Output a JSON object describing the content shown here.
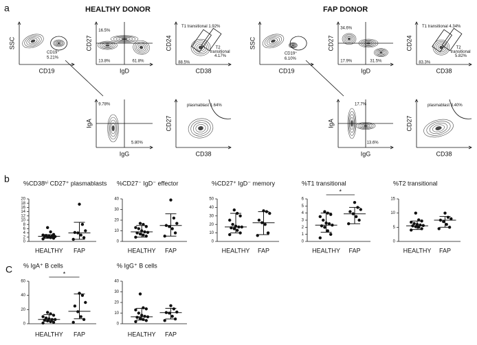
{
  "panel_labels": [
    "a",
    "b",
    "C"
  ],
  "donors": [
    "HEALTHY DONOR",
    "FAP DONOR"
  ],
  "flow_plots": [
    {
      "x_label": "CD19",
      "y_label": "SSC",
      "labels": [
        "CD19⁺",
        "5.21%"
      ]
    },
    {
      "x_label": "IgD",
      "y_label": "CD27",
      "labels": [
        "16.5%",
        "13.8%",
        "61.8%"
      ]
    },
    {
      "x_label": "CD38",
      "y_label": "CD24",
      "labels": [
        "T1 transitional 1.92%",
        "88.5%",
        "T2",
        "transitional",
        "4.17%"
      ]
    },
    {
      "x_label": "IgG",
      "y_label": "IgA",
      "labels": [
        "9.78%",
        "5.80%"
      ]
    },
    {
      "x_label": "CD38",
      "y_label": "CD27",
      "labels": [
        "plasmablast 1.64%"
      ]
    },
    {
      "x_label": "CD19",
      "y_label": "SSC",
      "labels": [
        "CD19⁺",
        "6.10%"
      ]
    },
    {
      "x_label": "IgD",
      "y_label": "CD27",
      "labels": [
        "34.6%",
        "17.9%",
        "31.5%"
      ]
    },
    {
      "x_label": "CD38",
      "y_label": "CD24",
      "labels": [
        "T1 transitional 4.34%",
        "83.3%",
        "T2",
        "transitional",
        "5.82%"
      ]
    },
    {
      "x_label": "IgG",
      "y_label": "IgA",
      "labels": [
        "17.7%",
        "13.6%"
      ]
    },
    {
      "x_label": "CD38",
      "y_label": "CD27",
      "labels": [
        "plasmablast 3.40%"
      ]
    }
  ],
  "chart_data": [
    {
      "type": "dotplot",
      "title": "%CD38ʰⁱ CD27⁺ plasmablasts",
      "categories": [
        "HEALTHY",
        "FAP"
      ],
      "color": "#111111",
      "ylim": [
        0,
        20
      ],
      "yticks": [
        0,
        2,
        4,
        6,
        8,
        10,
        12,
        14,
        16,
        18,
        20
      ],
      "groups": [
        {
          "points": [
            1.2,
            1.5,
            1.8,
            2,
            2.2,
            2.3,
            2.5,
            2.6,
            2.8,
            3,
            3.3,
            4.5,
            6.5
          ],
          "median": 2.4,
          "low": 1.5,
          "high": 3.2
        },
        {
          "points": [
            1,
            1.8,
            3,
            4,
            4.2,
            5,
            8,
            17.5
          ],
          "median": 4,
          "low": 1,
          "high": 9
        }
      ]
    },
    {
      "type": "dotplot",
      "title": "%CD27⁻ IgD⁻ effector",
      "categories": [
        "HEALTHY",
        "FAP"
      ],
      "color": "#111111",
      "ylim": [
        0,
        40
      ],
      "yticks": [
        0,
        10,
        20,
        30,
        40
      ],
      "groups": [
        {
          "points": [
            4,
            5,
            6,
            7,
            8,
            8.5,
            9,
            10,
            12,
            13,
            14,
            16,
            17
          ],
          "median": 9,
          "low": 4,
          "high": 15
        },
        {
          "points": [
            5,
            8,
            12,
            14,
            15,
            17,
            22,
            39
          ],
          "median": 15,
          "low": 5,
          "high": 26
        }
      ]
    },
    {
      "type": "dotplot",
      "title": "%CD27⁺ IgD⁻ memory",
      "categories": [
        "HEALTHY",
        "FAP"
      ],
      "color": "#111111",
      "ylim": [
        0,
        50
      ],
      "yticks": [
        0,
        10,
        20,
        30,
        40,
        50
      ],
      "groups": [
        {
          "points": [
            8,
            10,
            13,
            15,
            16,
            17,
            17,
            18,
            20,
            25,
            30,
            33,
            37
          ],
          "median": 17,
          "low": 10,
          "high": 33
        },
        {
          "points": [
            7,
            10,
            20,
            22,
            25,
            33,
            35,
            36
          ],
          "median": 22,
          "low": 8,
          "high": 35
        }
      ]
    },
    {
      "type": "dotplot",
      "title": "%T1 transitional",
      "categories": [
        "HEALTHY",
        "FAP"
      ],
      "color": "#111111",
      "ylim": [
        0,
        6
      ],
      "yticks": [
        0,
        1,
        2,
        3,
        4,
        5,
        6
      ],
      "significance": "*",
      "groups": [
        {
          "points": [
            0.5,
            1,
            1.5,
            2,
            2.2,
            2.3,
            2.5,
            2.6,
            3,
            3.5,
            3.8,
            4,
            4.2
          ],
          "median": 2.3,
          "low": 1.3,
          "high": 4
        },
        {
          "points": [
            2.5,
            3,
            3.5,
            3.9,
            4.2,
            4.5,
            4.8,
            5.5
          ],
          "median": 3.9,
          "low": 2.5,
          "high": 4.8
        }
      ]
    },
    {
      "type": "dotplot",
      "title": "%T2 transitional",
      "categories": [
        "HEALTHY",
        "FAP"
      ],
      "color": "#111111",
      "ylim": [
        0,
        15
      ],
      "yticks": [
        0,
        5,
        10,
        15
      ],
      "groups": [
        {
          "points": [
            4,
            4.5,
            5,
            5.2,
            5.5,
            5.6,
            5.8,
            6,
            6.3,
            6.8,
            7.2,
            7.6,
            10
          ],
          "median": 5.5,
          "low": 4.2,
          "high": 7.2
        },
        {
          "points": [
            4.5,
            5,
            6,
            7,
            7.5,
            8,
            8.5,
            10
          ],
          "median": 7.5,
          "low": 5,
          "high": 8.8
        }
      ]
    },
    {
      "type": "dotplot",
      "title": "% IgA⁺ B cells",
      "categories": [
        "HEALTHY",
        "FAP"
      ],
      "color": "#111111",
      "ylim": [
        0,
        60
      ],
      "yticks": [
        0,
        20,
        40,
        60
      ],
      "significance": "*",
      "groups": [
        {
          "points": [
            1,
            2,
            3,
            4,
            5,
            6,
            6,
            7,
            8,
            10,
            12,
            14,
            16
          ],
          "median": 6,
          "low": 3.5,
          "high": 13
        },
        {
          "points": [
            2,
            6,
            10,
            17,
            25,
            30,
            40,
            43
          ],
          "median": 17.5,
          "low": 7,
          "high": 42
        }
      ]
    },
    {
      "type": "dotplot",
      "title": "% IgG⁺ B cells",
      "categories": [
        "HEALTHY",
        "FAP"
      ],
      "color": "#111111",
      "ylim": [
        0,
        40
      ],
      "yticks": [
        0,
        10,
        20,
        30,
        40
      ],
      "groups": [
        {
          "points": [
            2,
            3,
            4,
            5,
            6,
            6.5,
            7,
            8,
            10,
            13,
            14,
            15,
            28
          ],
          "median": 6.5,
          "low": 3.5,
          "high": 14.5
        },
        {
          "points": [
            3,
            4.5,
            7,
            10,
            10.5,
            11,
            14,
            17
          ],
          "median": 10.5,
          "low": 4.5,
          "high": 14.5
        }
      ]
    }
  ]
}
